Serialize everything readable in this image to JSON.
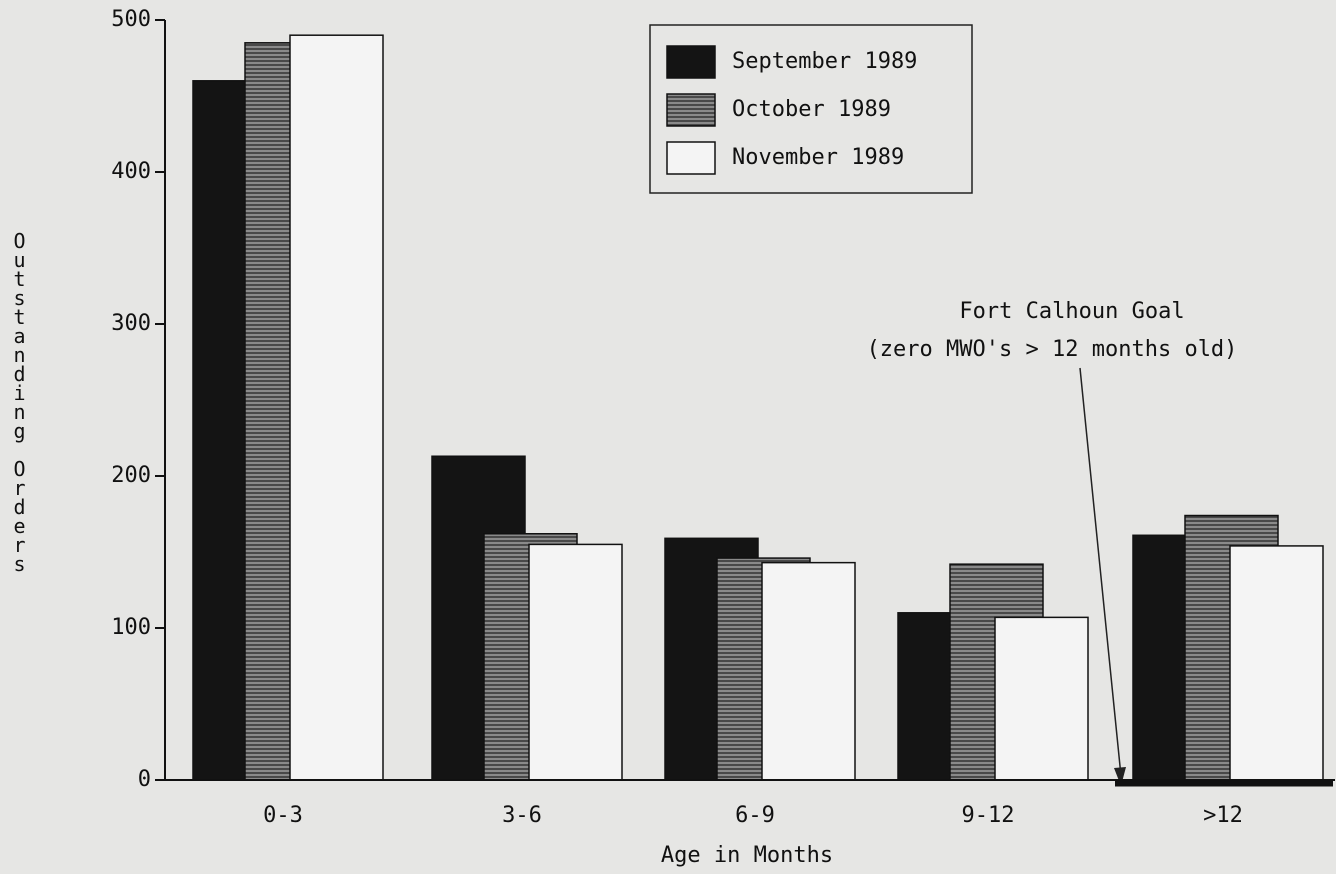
{
  "chart_data": {
    "type": "bar",
    "categories": [
      "0-3",
      "3-6",
      "6-9",
      "9-12",
      ">12"
    ],
    "series": [
      {
        "name": "September 1989",
        "color": "#141414",
        "values": [
          460,
          213,
          159,
          110,
          161
        ]
      },
      {
        "name": "October 1989",
        "color": "#6a6a6a",
        "values": [
          485,
          162,
          146,
          142,
          174
        ]
      },
      {
        "name": "November 1989",
        "color": "#f4f4f4",
        "values": [
          490,
          155,
          143,
          107,
          154
        ]
      }
    ],
    "xlabel": "Age in Months",
    "ylabel": "Outstanding Orders",
    "ylim": [
      0,
      500
    ],
    "yticks": [
      0,
      100,
      200,
      300,
      400,
      500
    ],
    "annotations": [
      "Fort Calhoun Goal",
      "(zero MWO's > 12 months old)"
    ],
    "legend": "top-center"
  }
}
